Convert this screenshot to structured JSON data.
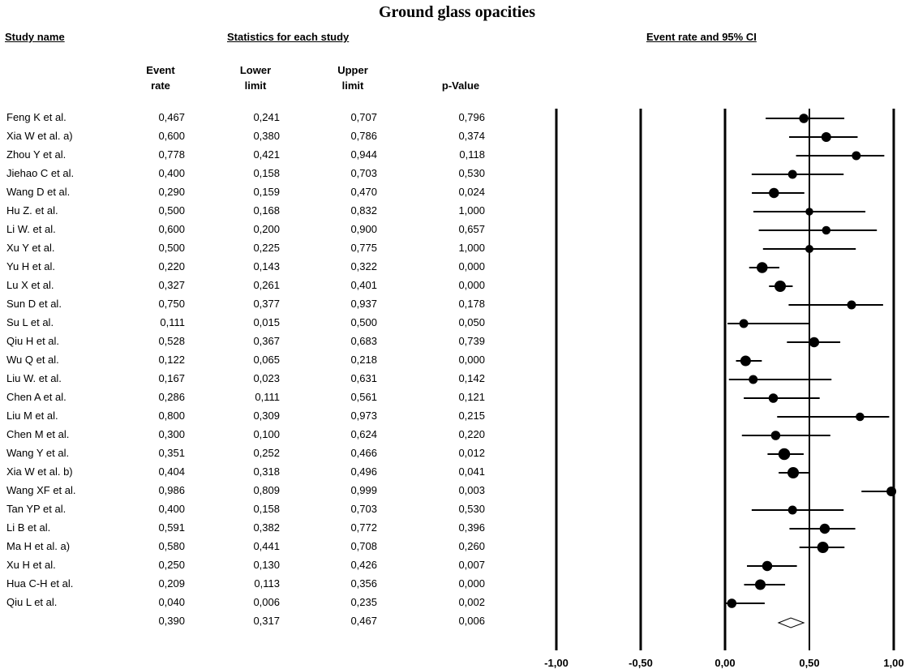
{
  "title": "Ground glass opacities",
  "headers": {
    "study_name": "Study name",
    "statistics": "Statistics for each study",
    "event_rate_ci": "Event rate and 95% CI"
  },
  "columns": {
    "event_rate": [
      "Event",
      "rate"
    ],
    "lower": [
      "Lower",
      "limit"
    ],
    "upper": [
      "Upper",
      "limit"
    ],
    "p": [
      "p-Value",
      ""
    ]
  },
  "rows": [
    {
      "name": "Feng K et al.",
      "rate": "0,467",
      "lower": "0,241",
      "upper": "0,707",
      "p": "0,796"
    },
    {
      "name": "Xia W et al. a)",
      "rate": "0,600",
      "lower": "0,380",
      "upper": "0,786",
      "p": "0,374"
    },
    {
      "name": "Zhou Y et al.",
      "rate": "0,778",
      "lower": "0,421",
      "upper": "0,944",
      "p": "0,118"
    },
    {
      "name": "Jiehao C et al.",
      "rate": "0,400",
      "lower": "0,158",
      "upper": "0,703",
      "p": "0,530"
    },
    {
      "name": "Wang D et al.",
      "rate": "0,290",
      "lower": "0,159",
      "upper": "0,470",
      "p": "0,024"
    },
    {
      "name": "Hu Z. et al.",
      "rate": "0,500",
      "lower": "0,168",
      "upper": "0,832",
      "p": "1,000"
    },
    {
      "name": "Li W. et al.",
      "rate": "0,600",
      "lower": "0,200",
      "upper": "0,900",
      "p": "0,657"
    },
    {
      "name": "Xu Y et al.",
      "rate": "0,500",
      "lower": "0,225",
      "upper": "0,775",
      "p": "1,000"
    },
    {
      "name": "Yu H et al.",
      "rate": "0,220",
      "lower": "0,143",
      "upper": "0,322",
      "p": "0,000"
    },
    {
      "name": "Lu X et al.",
      "rate": "0,327",
      "lower": "0,261",
      "upper": "0,401",
      "p": "0,000"
    },
    {
      "name": "Sun D et al.",
      "rate": "0,750",
      "lower": "0,377",
      "upper": "0,937",
      "p": "0,178"
    },
    {
      "name": "Su L et al.",
      "rate": "0,111",
      "lower": "0,015",
      "upper": "0,500",
      "p": "0,050"
    },
    {
      "name": "Qiu H et al.",
      "rate": "0,528",
      "lower": "0,367",
      "upper": "0,683",
      "p": "0,739"
    },
    {
      "name": "Wu Q et al.",
      "rate": "0,122",
      "lower": "0,065",
      "upper": "0,218",
      "p": "0,000"
    },
    {
      "name": "Liu W. et al.",
      "rate": "0,167",
      "lower": "0,023",
      "upper": "0,631",
      "p": "0,142"
    },
    {
      "name": "Chen A et al.",
      "rate": "0,286",
      "lower": "0,111",
      "upper": "0,561",
      "p": "0,121"
    },
    {
      "name": "Liu M et al.",
      "rate": "0,800",
      "lower": "0,309",
      "upper": "0,973",
      "p": "0,215"
    },
    {
      "name": "Chen M et al.",
      "rate": "0,300",
      "lower": "0,100",
      "upper": "0,624",
      "p": "0,220"
    },
    {
      "name": "Wang Y et al.",
      "rate": "0,351",
      "lower": "0,252",
      "upper": "0,466",
      "p": "0,012"
    },
    {
      "name": "Xia W et al. b)",
      "rate": "0,404",
      "lower": "0,318",
      "upper": "0,496",
      "p": "0,041"
    },
    {
      "name": "Wang XF et al.",
      "rate": "0,986",
      "lower": "0,809",
      "upper": "0,999",
      "p": "0,003"
    },
    {
      "name": "Tan YP et al.",
      "rate": "0,400",
      "lower": "0,158",
      "upper": "0,703",
      "p": "0,530"
    },
    {
      "name": "Li B et al.",
      "rate": "0,591",
      "lower": "0,382",
      "upper": "0,772",
      "p": "0,396"
    },
    {
      "name": "Ma H et al. a)",
      "rate": "0,580",
      "lower": "0,441",
      "upper": "0,708",
      "p": "0,260"
    },
    {
      "name": "Xu H et al.",
      "rate": "0,250",
      "lower": "0,130",
      "upper": "0,426",
      "p": "0,007"
    },
    {
      "name": "Hua C-H et al.",
      "rate": "0,209",
      "lower": "0,113",
      "upper": "0,356",
      "p": "0,000"
    },
    {
      "name": "Qiu L et al.",
      "rate": "0,040",
      "lower": "0,006",
      "upper": "0,235",
      "p": "0,002"
    }
  ],
  "summary": {
    "name": "",
    "rate": "0,390",
    "lower": "0,317",
    "upper": "0,467",
    "p": "0,006"
  },
  "chart_data": {
    "type": "forest",
    "title": "Ground glass opacities",
    "header": "Event rate and 95% CI",
    "xlim": [
      -1.0,
      1.0
    ],
    "xticks": [
      -1.0,
      -0.5,
      0.0,
      0.5,
      1.0
    ],
    "xtick_labels": [
      "-1,00",
      "-0,50",
      "0,00",
      "0,50",
      "1,00"
    ],
    "reference_line": 0.5,
    "points": [
      {
        "label": "Feng K et al.",
        "x": 0.467,
        "lo": 0.241,
        "hi": 0.707,
        "w": 0.55
      },
      {
        "label": "Xia W et al. a)",
        "x": 0.6,
        "lo": 0.38,
        "hi": 0.786,
        "w": 0.6
      },
      {
        "label": "Zhou Y et al.",
        "x": 0.778,
        "lo": 0.421,
        "hi": 0.944,
        "w": 0.5
      },
      {
        "label": "Jiehao C et al.",
        "x": 0.4,
        "lo": 0.158,
        "hi": 0.703,
        "w": 0.5
      },
      {
        "label": "Wang D et al.",
        "x": 0.29,
        "lo": 0.159,
        "hi": 0.47,
        "w": 0.65
      },
      {
        "label": "Hu Z. et al.",
        "x": 0.5,
        "lo": 0.168,
        "hi": 0.832,
        "w": 0.35
      },
      {
        "label": "Li W. et al.",
        "x": 0.6,
        "lo": 0.2,
        "hi": 0.9,
        "w": 0.45
      },
      {
        "label": "Xu Y et al.",
        "x": 0.5,
        "lo": 0.225,
        "hi": 0.775,
        "w": 0.4
      },
      {
        "label": "Yu H et al.",
        "x": 0.22,
        "lo": 0.143,
        "hi": 0.322,
        "w": 0.75
      },
      {
        "label": "Lu X et al.",
        "x": 0.327,
        "lo": 0.261,
        "hi": 0.401,
        "w": 0.8
      },
      {
        "label": "Sun D et al.",
        "x": 0.75,
        "lo": 0.377,
        "hi": 0.937,
        "w": 0.5
      },
      {
        "label": "Su L et al.",
        "x": 0.111,
        "lo": 0.015,
        "hi": 0.5,
        "w": 0.5
      },
      {
        "label": "Qiu H et al.",
        "x": 0.528,
        "lo": 0.367,
        "hi": 0.683,
        "w": 0.65
      },
      {
        "label": "Wu Q et al.",
        "x": 0.122,
        "lo": 0.065,
        "hi": 0.218,
        "w": 0.7
      },
      {
        "label": "Liu W. et al.",
        "x": 0.167,
        "lo": 0.023,
        "hi": 0.631,
        "w": 0.5
      },
      {
        "label": "Chen A et al.",
        "x": 0.286,
        "lo": 0.111,
        "hi": 0.561,
        "w": 0.55
      },
      {
        "label": "Liu M et al.",
        "x": 0.8,
        "lo": 0.309,
        "hi": 0.973,
        "w": 0.45
      },
      {
        "label": "Chen M et al.",
        "x": 0.3,
        "lo": 0.1,
        "hi": 0.624,
        "w": 0.55
      },
      {
        "label": "Wang Y et al.",
        "x": 0.351,
        "lo": 0.252,
        "hi": 0.466,
        "w": 0.85
      },
      {
        "label": "Xia W et al. b)",
        "x": 0.404,
        "lo": 0.318,
        "hi": 0.496,
        "w": 0.8
      },
      {
        "label": "Wang XF et al.",
        "x": 0.986,
        "lo": 0.809,
        "hi": 0.999,
        "w": 0.6
      },
      {
        "label": "Tan YP et al.",
        "x": 0.4,
        "lo": 0.158,
        "hi": 0.703,
        "w": 0.5
      },
      {
        "label": "Li B et al.",
        "x": 0.591,
        "lo": 0.382,
        "hi": 0.772,
        "w": 0.65
      },
      {
        "label": "Ma H et al. a)",
        "x": 0.58,
        "lo": 0.441,
        "hi": 0.708,
        "w": 0.8
      },
      {
        "label": "Xu H et al.",
        "x": 0.25,
        "lo": 0.13,
        "hi": 0.426,
        "w": 0.65
      },
      {
        "label": "Hua C-H et al.",
        "x": 0.209,
        "lo": 0.113,
        "hi": 0.356,
        "w": 0.7
      },
      {
        "label": "Qiu L et al.",
        "x": 0.04,
        "lo": 0.006,
        "hi": 0.235,
        "w": 0.55
      }
    ],
    "summary": {
      "x": 0.39,
      "lo": 0.317,
      "hi": 0.467
    }
  }
}
